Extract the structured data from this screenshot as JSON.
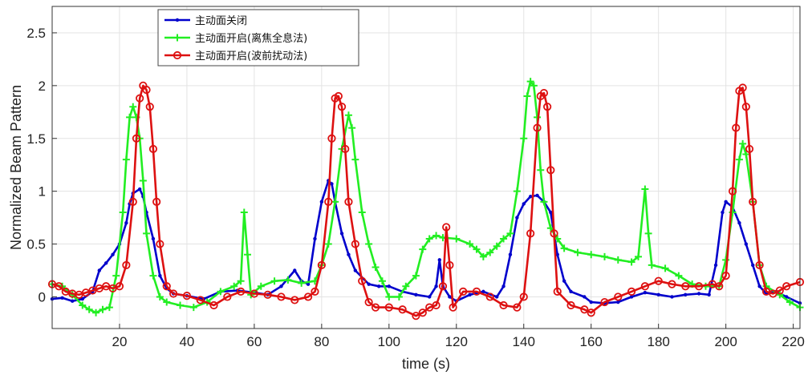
{
  "chart_data": {
    "type": "line",
    "title": "",
    "xlabel": "time (s)",
    "ylabel": "Normalized Beam Pattern",
    "xlim": [
      0,
      222
    ],
    "ylim": [
      -0.3,
      2.75
    ],
    "xticks": [
      20,
      40,
      60,
      80,
      100,
      120,
      140,
      160,
      180,
      200,
      220
    ],
    "xtick_labels": [
      "20",
      "40",
      "60",
      "80",
      "100",
      "120",
      "140",
      "160",
      "180",
      "200",
      "220"
    ],
    "yticks": [
      0,
      0.5,
      1,
      1.5,
      2,
      2.5
    ],
    "ytick_labels": [
      "0",
      "0.5",
      "1",
      "1.5",
      "2",
      "2.5"
    ],
    "grid": true,
    "legend_position": "top-left",
    "series": [
      {
        "name": "主动面关闭",
        "color": "#0000cc",
        "marker": "dot",
        "points": [
          [
            0,
            -0.02
          ],
          [
            3,
            -0.01
          ],
          [
            6,
            -0.04
          ],
          [
            9,
            -0.02
          ],
          [
            12,
            0.05
          ],
          [
            14,
            0.25
          ],
          [
            16,
            0.32
          ],
          [
            18,
            0.4
          ],
          [
            20,
            0.5
          ],
          [
            22,
            0.7
          ],
          [
            23,
            0.88
          ],
          [
            24,
            0.98
          ],
          [
            26,
            1.02
          ],
          [
            27,
            0.95
          ],
          [
            28,
            0.8
          ],
          [
            30,
            0.55
          ],
          [
            32,
            0.2
          ],
          [
            34,
            0.08
          ],
          [
            36,
            0.03
          ],
          [
            40,
            0.01
          ],
          [
            45,
            -0.02
          ],
          [
            50,
            0.05
          ],
          [
            55,
            0.06
          ],
          [
            60,
            0.04
          ],
          [
            64,
            0.02
          ],
          [
            68,
            0.1
          ],
          [
            72,
            0.25
          ],
          [
            74,
            0.15
          ],
          [
            76,
            0.12
          ],
          [
            78,
            0.55
          ],
          [
            80,
            0.9
          ],
          [
            82,
            1.1
          ],
          [
            83,
            1.07
          ],
          [
            84,
            0.9
          ],
          [
            86,
            0.6
          ],
          [
            88,
            0.4
          ],
          [
            90,
            0.25
          ],
          [
            94,
            0.12
          ],
          [
            97,
            0.1
          ],
          [
            100,
            0.1
          ],
          [
            104,
            0.05
          ],
          [
            108,
            0.02
          ],
          [
            112,
            0.0
          ],
          [
            114,
            0.1
          ],
          [
            115,
            0.35
          ],
          [
            116,
            0.1
          ],
          [
            118,
            0.0
          ],
          [
            120,
            -0.04
          ],
          [
            124,
            0.02
          ],
          [
            128,
            0.05
          ],
          [
            132,
            0.0
          ],
          [
            134,
            0.1
          ],
          [
            136,
            0.4
          ],
          [
            138,
            0.75
          ],
          [
            140,
            0.88
          ],
          [
            142,
            0.95
          ],
          [
            144,
            0.96
          ],
          [
            146,
            0.9
          ],
          [
            148,
            0.8
          ],
          [
            150,
            0.4
          ],
          [
            152,
            0.15
          ],
          [
            154,
            0.05
          ],
          [
            158,
            0.0
          ],
          [
            160,
            -0.05
          ],
          [
            164,
            -0.06
          ],
          [
            168,
            -0.05
          ],
          [
            172,
            0.0
          ],
          [
            176,
            0.04
          ],
          [
            180,
            0.02
          ],
          [
            184,
            0.0
          ],
          [
            188,
            0.02
          ],
          [
            192,
            0.03
          ],
          [
            195,
            0.02
          ],
          [
            197,
            0.3
          ],
          [
            199,
            0.8
          ],
          [
            200,
            0.9
          ],
          [
            202,
            0.85
          ],
          [
            204,
            0.7
          ],
          [
            206,
            0.5
          ],
          [
            208,
            0.3
          ],
          [
            210,
            0.1
          ],
          [
            212,
            0.03
          ],
          [
            215,
            0.05
          ],
          [
            218,
            0.0
          ],
          [
            222,
            -0.06
          ]
        ]
      },
      {
        "name": "主动面开启(离焦全息法)",
        "color": "#22ee22",
        "marker": "plus",
        "points": [
          [
            0,
            0.12
          ],
          [
            3,
            0.1
          ],
          [
            6,
            0.02
          ],
          [
            9,
            -0.08
          ],
          [
            11,
            -0.12
          ],
          [
            13,
            -0.15
          ],
          [
            15,
            -0.12
          ],
          [
            17,
            -0.1
          ],
          [
            19,
            0.2
          ],
          [
            21,
            0.8
          ],
          [
            22,
            1.3
          ],
          [
            23,
            1.7
          ],
          [
            24,
            1.8
          ],
          [
            25,
            1.7
          ],
          [
            26,
            1.5
          ],
          [
            27,
            1.1
          ],
          [
            28,
            0.6
          ],
          [
            30,
            0.2
          ],
          [
            32,
            0.0
          ],
          [
            34,
            -0.05
          ],
          [
            38,
            -0.08
          ],
          [
            42,
            -0.1
          ],
          [
            46,
            -0.05
          ],
          [
            50,
            0.05
          ],
          [
            54,
            0.1
          ],
          [
            56,
            0.15
          ],
          [
            57,
            0.8
          ],
          [
            58,
            0.4
          ],
          [
            59,
            0.02
          ],
          [
            62,
            0.1
          ],
          [
            66,
            0.15
          ],
          [
            70,
            0.16
          ],
          [
            74,
            0.13
          ],
          [
            78,
            0.15
          ],
          [
            80,
            0.3
          ],
          [
            82,
            0.5
          ],
          [
            84,
            0.9
          ],
          [
            86,
            1.4
          ],
          [
            88,
            1.72
          ],
          [
            89,
            1.6
          ],
          [
            90,
            1.3
          ],
          [
            92,
            0.8
          ],
          [
            94,
            0.5
          ],
          [
            96,
            0.28
          ],
          [
            98,
            0.15
          ],
          [
            100,
            0.0
          ],
          [
            103,
            0.0
          ],
          [
            105,
            0.1
          ],
          [
            108,
            0.2
          ],
          [
            110,
            0.45
          ],
          [
            112,
            0.55
          ],
          [
            114,
            0.58
          ],
          [
            116,
            0.56
          ],
          [
            120,
            0.55
          ],
          [
            124,
            0.5
          ],
          [
            126,
            0.45
          ],
          [
            128,
            0.38
          ],
          [
            130,
            0.42
          ],
          [
            132,
            0.48
          ],
          [
            134,
            0.55
          ],
          [
            136,
            0.6
          ],
          [
            138,
            1.0
          ],
          [
            140,
            1.5
          ],
          [
            141,
            1.9
          ],
          [
            142,
            2.04
          ],
          [
            143,
            2.0
          ],
          [
            144,
            1.7
          ],
          [
            145,
            1.2
          ],
          [
            146,
            0.9
          ],
          [
            148,
            0.65
          ],
          [
            150,
            0.55
          ],
          [
            152,
            0.46
          ],
          [
            156,
            0.42
          ],
          [
            160,
            0.4
          ],
          [
            164,
            0.38
          ],
          [
            168,
            0.35
          ],
          [
            172,
            0.33
          ],
          [
            174,
            0.38
          ],
          [
            176,
            1.02
          ],
          [
            177,
            0.6
          ],
          [
            178,
            0.3
          ],
          [
            182,
            0.27
          ],
          [
            186,
            0.2
          ],
          [
            190,
            0.12
          ],
          [
            194,
            0.1
          ],
          [
            198,
            0.1
          ],
          [
            200,
            0.35
          ],
          [
            202,
            0.8
          ],
          [
            204,
            1.3
          ],
          [
            205,
            1.45
          ],
          [
            206,
            1.35
          ],
          [
            208,
            0.9
          ],
          [
            210,
            0.3
          ],
          [
            212,
            0.1
          ],
          [
            216,
            0.02
          ],
          [
            219,
            -0.05
          ],
          [
            222,
            -0.1
          ]
        ]
      },
      {
        "name": "主动面开启(波前扰动法)",
        "color": "#dd1111",
        "marker": "circle",
        "points": [
          [
            0,
            0.12
          ],
          [
            2,
            0.1
          ],
          [
            4,
            0.05
          ],
          [
            6,
            0.03
          ],
          [
            8,
            0.02
          ],
          [
            10,
            0.04
          ],
          [
            12,
            0.06
          ],
          [
            14,
            0.08
          ],
          [
            16,
            0.1
          ],
          [
            18,
            0.08
          ],
          [
            20,
            0.1
          ],
          [
            22,
            0.3
          ],
          [
            24,
            0.9
          ],
          [
            25,
            1.5
          ],
          [
            26,
            1.88
          ],
          [
            27,
            2.0
          ],
          [
            28,
            1.96
          ],
          [
            29,
            1.8
          ],
          [
            30,
            1.4
          ],
          [
            31,
            0.9
          ],
          [
            32,
            0.5
          ],
          [
            34,
            0.1
          ],
          [
            36,
            0.03
          ],
          [
            40,
            0.01
          ],
          [
            44,
            -0.03
          ],
          [
            48,
            -0.08
          ],
          [
            52,
            0.0
          ],
          [
            56,
            0.05
          ],
          [
            60,
            0.03
          ],
          [
            64,
            0.02
          ],
          [
            68,
            0.0
          ],
          [
            72,
            -0.03
          ],
          [
            76,
            0.0
          ],
          [
            78,
            0.05
          ],
          [
            80,
            0.3
          ],
          [
            82,
            0.9
          ],
          [
            83,
            1.5
          ],
          [
            84,
            1.88
          ],
          [
            85,
            1.9
          ],
          [
            86,
            1.8
          ],
          [
            87,
            1.4
          ],
          [
            88,
            0.9
          ],
          [
            90,
            0.5
          ],
          [
            92,
            0.15
          ],
          [
            94,
            -0.05
          ],
          [
            96,
            -0.1
          ],
          [
            100,
            -0.1
          ],
          [
            104,
            -0.12
          ],
          [
            108,
            -0.18
          ],
          [
            110,
            -0.15
          ],
          [
            112,
            -0.1
          ],
          [
            114,
            -0.08
          ],
          [
            116,
            0.1
          ],
          [
            117,
            0.66
          ],
          [
            118,
            0.3
          ],
          [
            119,
            -0.1
          ],
          [
            122,
            0.05
          ],
          [
            126,
            0.05
          ],
          [
            130,
            0.0
          ],
          [
            134,
            -0.08
          ],
          [
            138,
            -0.1
          ],
          [
            140,
            0.0
          ],
          [
            142,
            0.6
          ],
          [
            144,
            1.6
          ],
          [
            145,
            1.9
          ],
          [
            146,
            1.93
          ],
          [
            147,
            1.8
          ],
          [
            148,
            1.2
          ],
          [
            149,
            0.6
          ],
          [
            150,
            0.05
          ],
          [
            154,
            -0.08
          ],
          [
            158,
            -0.12
          ],
          [
            160,
            -0.15
          ],
          [
            164,
            -0.05
          ],
          [
            168,
            0.0
          ],
          [
            172,
            0.05
          ],
          [
            176,
            0.1
          ],
          [
            180,
            0.15
          ],
          [
            184,
            0.12
          ],
          [
            188,
            0.1
          ],
          [
            192,
            0.1
          ],
          [
            196,
            0.12
          ],
          [
            198,
            0.1
          ],
          [
            200,
            0.2
          ],
          [
            202,
            1.0
          ],
          [
            203,
            1.6
          ],
          [
            204,
            1.95
          ],
          [
            205,
            1.98
          ],
          [
            206,
            1.8
          ],
          [
            207,
            1.4
          ],
          [
            208,
            0.9
          ],
          [
            210,
            0.3
          ],
          [
            212,
            0.05
          ],
          [
            214,
            0.03
          ],
          [
            216,
            0.06
          ],
          [
            218,
            0.1
          ],
          [
            222,
            0.14
          ]
        ]
      }
    ]
  }
}
